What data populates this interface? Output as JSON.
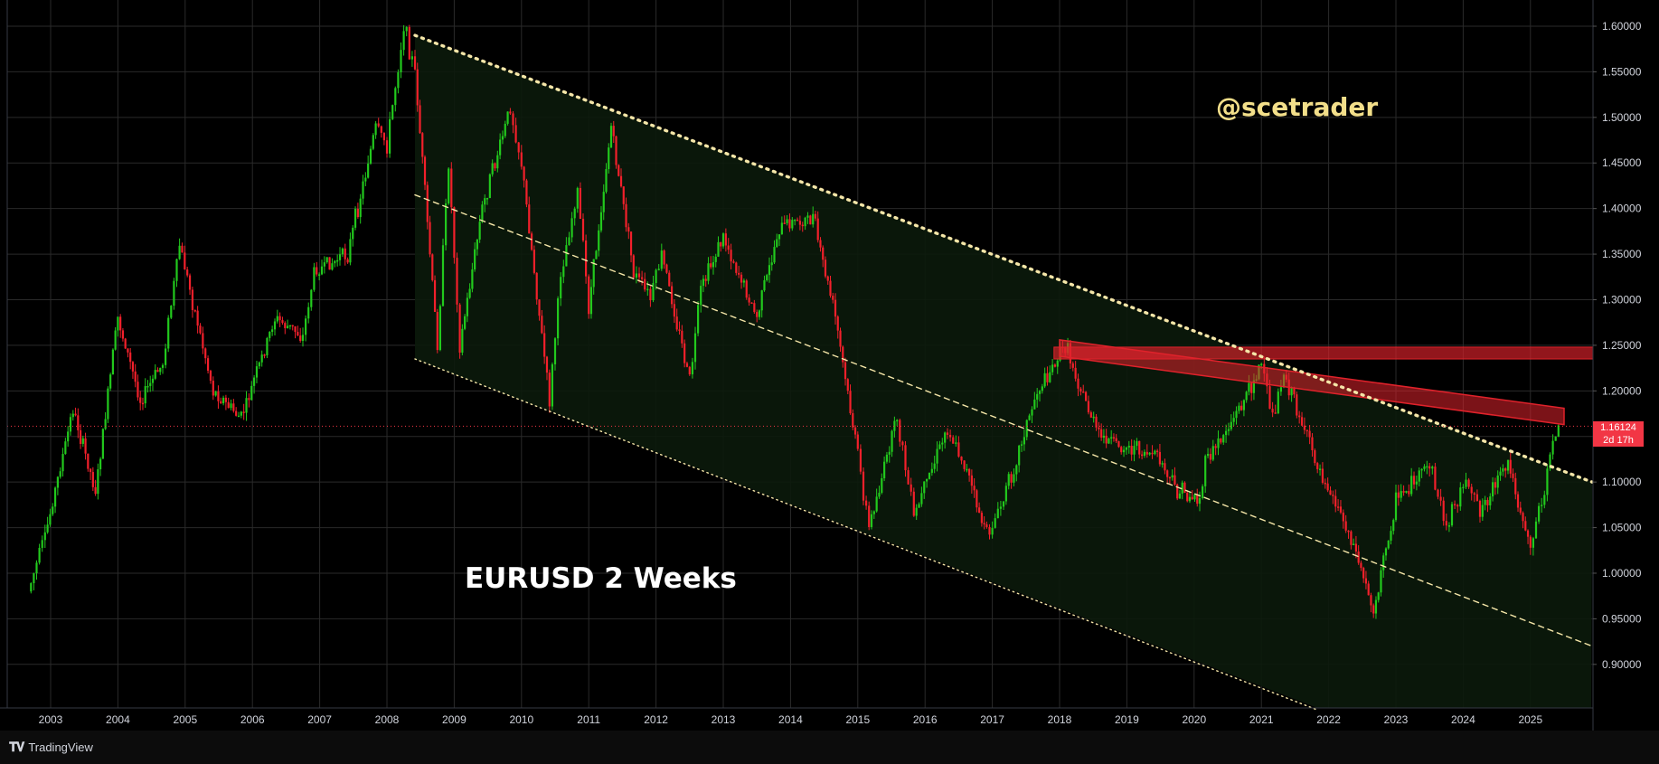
{
  "chart_data": {
    "type": "candlestick",
    "symbol": "EURUSD",
    "interval": "2 Weeks",
    "title": "EURUSD 2 Weeks",
    "author": "@scetrader",
    "platform": "TradingView",
    "x_ticks": [
      "2003",
      "2004",
      "2005",
      "2006",
      "2007",
      "2008",
      "2009",
      "2010",
      "2011",
      "2012",
      "2013",
      "2014",
      "2015",
      "2016",
      "2017",
      "2018",
      "2019",
      "2020",
      "2021",
      "2022",
      "2023",
      "2024",
      "2025"
    ],
    "y_ticks": [
      "1.60000",
      "1.55000",
      "1.50000",
      "1.45000",
      "1.40000",
      "1.35000",
      "1.30000",
      "1.25000",
      "1.20000",
      "1.15000",
      "1.10000",
      "1.05000",
      "1.00000",
      "0.95000",
      "0.90000"
    ],
    "ylim": [
      0.855,
      1.61
    ],
    "grid": true,
    "last_price": "1.16124",
    "countdown": "2d 17h",
    "colors": {
      "up": "#22c91d",
      "down": "#f2202b",
      "background": "#000000",
      "grid": "#2a2a2a",
      "text": "#d1d4dc",
      "channel_fill": "#0b1a0b",
      "resistance": "#e0222b",
      "trendline": "#f5e6a8"
    },
    "price_path": [
      [
        "2002-09",
        0.98
      ],
      [
        "2002-12",
        1.04
      ],
      [
        "2003-05",
        1.18
      ],
      [
        "2003-09",
        1.09
      ],
      [
        "2004-01",
        1.28
      ],
      [
        "2004-05",
        1.19
      ],
      [
        "2004-09",
        1.23
      ],
      [
        "2004-12",
        1.36
      ],
      [
        "2005-06",
        1.2
      ],
      [
        "2005-11",
        1.17
      ],
      [
        "2006-05",
        1.28
      ],
      [
        "2006-10",
        1.26
      ],
      [
        "2006-12",
        1.33
      ],
      [
        "2007-06",
        1.35
      ],
      [
        "2007-11",
        1.49
      ],
      [
        "2008-01",
        1.47
      ],
      [
        "2008-04",
        1.6
      ],
      [
        "2008-06",
        1.55
      ],
      [
        "2008-10",
        1.25
      ],
      [
        "2008-12",
        1.45
      ],
      [
        "2009-02",
        1.25
      ],
      [
        "2009-06",
        1.4
      ],
      [
        "2009-11",
        1.51
      ],
      [
        "2010-01",
        1.45
      ],
      [
        "2010-06",
        1.19
      ],
      [
        "2010-08",
        1.33
      ],
      [
        "2010-11",
        1.42
      ],
      [
        "2011-01",
        1.29
      ],
      [
        "2011-05",
        1.49
      ],
      [
        "2011-09",
        1.33
      ],
      [
        "2011-12",
        1.3
      ],
      [
        "2012-02",
        1.35
      ],
      [
        "2012-07",
        1.21
      ],
      [
        "2012-09",
        1.31
      ],
      [
        "2013-01",
        1.37
      ],
      [
        "2013-07",
        1.28
      ],
      [
        "2013-11",
        1.38
      ],
      [
        "2014-05",
        1.39
      ],
      [
        "2014-09",
        1.28
      ],
      [
        "2015-01",
        1.13
      ],
      [
        "2015-03",
        1.05
      ],
      [
        "2015-08",
        1.17
      ],
      [
        "2015-11",
        1.06
      ],
      [
        "2016-05",
        1.16
      ],
      [
        "2016-08",
        1.12
      ],
      [
        "2016-12",
        1.04
      ],
      [
        "2017-03",
        1.08
      ],
      [
        "2017-09",
        1.2
      ],
      [
        "2018-02",
        1.25
      ],
      [
        "2018-08",
        1.15
      ],
      [
        "2018-12",
        1.14
      ],
      [
        "2019-06",
        1.13
      ],
      [
        "2019-10",
        1.09
      ],
      [
        "2020-02",
        1.08
      ],
      [
        "2020-03",
        1.12
      ],
      [
        "2020-09",
        1.18
      ],
      [
        "2021-01",
        1.23
      ],
      [
        "2021-03",
        1.17
      ],
      [
        "2021-05",
        1.22
      ],
      [
        "2021-11",
        1.12
      ],
      [
        "2022-05",
        1.04
      ],
      [
        "2022-09",
        0.96
      ],
      [
        "2023-01",
        1.08
      ],
      [
        "2023-07",
        1.12
      ],
      [
        "2023-10",
        1.05
      ],
      [
        "2024-01",
        1.1
      ],
      [
        "2024-04",
        1.07
      ],
      [
        "2024-09",
        1.12
      ],
      [
        "2025-01",
        1.03
      ],
      [
        "2025-03",
        1.08
      ],
      [
        "2025-06",
        1.17
      ]
    ],
    "trendlines": [
      {
        "name": "upper-channel-line",
        "style": "dotted",
        "from": [
          "2008-06",
          1.59
        ],
        "to": [
          "2025-12",
          1.1
        ]
      },
      {
        "name": "middle-channel-line",
        "style": "dashed",
        "from": [
          "2008-06",
          1.415
        ],
        "to": [
          "2025-12",
          0.92
        ]
      },
      {
        "name": "lower-channel-line",
        "style": "dotted",
        "from": [
          "2008-06",
          1.235
        ],
        "to": [
          "2021-11",
          0.85
        ]
      }
    ],
    "resistance_zones": [
      {
        "name": "horizontal-resistance-zone",
        "from": "2017-12",
        "to": "2025-12",
        "low": 1.235,
        "high": 1.248
      },
      {
        "name": "sloped-resistance-zone",
        "from": [
          "2018-01",
          1.247
        ],
        "to": [
          "2025-07",
          1.172
        ],
        "thickness": 0.018
      }
    ]
  }
}
